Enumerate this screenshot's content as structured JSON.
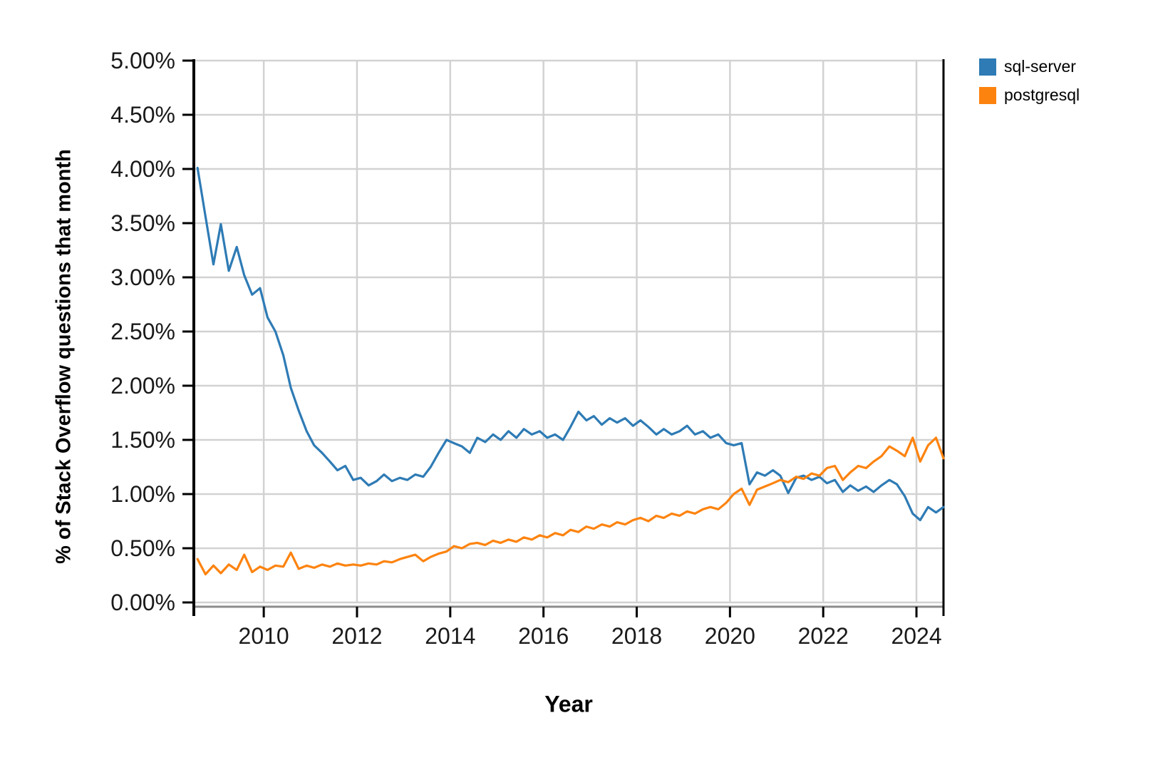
{
  "chart_data": {
    "type": "line",
    "title": "",
    "xlabel": "Year",
    "ylabel": "% of Stack Overflow questions that month",
    "xlim": [
      2008.5,
      2024.58
    ],
    "ylim": [
      0,
      5
    ],
    "grid": true,
    "legend_position": "outside-top-right",
    "x_ticks": [
      2010,
      2012,
      2014,
      2016,
      2018,
      2020,
      2022,
      2024
    ],
    "x_tick_labels": [
      "2010",
      "2012",
      "2014",
      "2016",
      "2018",
      "2020",
      "2022",
      "2024"
    ],
    "y_ticks": [
      0,
      0.5,
      1,
      1.5,
      2,
      2.5,
      3,
      3.5,
      4,
      4.5,
      5
    ],
    "y_tick_labels": [
      "0.00%",
      "0.50%",
      "1.00%",
      "1.50%",
      "2.00%",
      "2.50%",
      "3.00%",
      "3.50%",
      "4.00%",
      "4.50%",
      "5.00%"
    ],
    "colors": {
      "grid": "#d2d2d2",
      "spine": "#000000",
      "axis_bottom": "#8c8c8c",
      "text": "#1a1a1a"
    },
    "x": [
      2008.58,
      2008.75,
      2008.92,
      2009.08,
      2009.25,
      2009.42,
      2009.58,
      2009.75,
      2009.92,
      2010.08,
      2010.25,
      2010.42,
      2010.58,
      2010.75,
      2010.92,
      2011.08,
      2011.25,
      2011.42,
      2011.58,
      2011.75,
      2011.92,
      2012.08,
      2012.25,
      2012.42,
      2012.58,
      2012.75,
      2012.92,
      2013.08,
      2013.25,
      2013.42,
      2013.58,
      2013.75,
      2013.92,
      2014.08,
      2014.25,
      2014.42,
      2014.58,
      2014.75,
      2014.92,
      2015.08,
      2015.25,
      2015.42,
      2015.58,
      2015.75,
      2015.92,
      2016.08,
      2016.25,
      2016.42,
      2016.58,
      2016.75,
      2016.92,
      2017.08,
      2017.25,
      2017.42,
      2017.58,
      2017.75,
      2017.92,
      2018.08,
      2018.25,
      2018.42,
      2018.58,
      2018.75,
      2018.92,
      2019.08,
      2019.25,
      2019.42,
      2019.58,
      2019.75,
      2019.92,
      2020.08,
      2020.25,
      2020.42,
      2020.58,
      2020.75,
      2020.92,
      2021.08,
      2021.25,
      2021.42,
      2021.58,
      2021.75,
      2021.92,
      2022.08,
      2022.25,
      2022.42,
      2022.58,
      2022.75,
      2022.92,
      2023.08,
      2023.25,
      2023.42,
      2023.58,
      2023.75,
      2023.92,
      2024.08,
      2024.25,
      2024.42,
      2024.58
    ],
    "series": [
      {
        "name": "sql-server",
        "color": "#2e7bb5",
        "values": [
          4.01,
          3.56,
          3.12,
          3.49,
          3.06,
          3.28,
          3.02,
          2.84,
          2.9,
          2.63,
          2.5,
          2.28,
          1.98,
          1.77,
          1.58,
          1.45,
          1.38,
          1.3,
          1.22,
          1.26,
          1.13,
          1.15,
          1.08,
          1.12,
          1.18,
          1.12,
          1.15,
          1.13,
          1.18,
          1.16,
          1.25,
          1.38,
          1.5,
          1.47,
          1.44,
          1.38,
          1.52,
          1.48,
          1.55,
          1.5,
          1.58,
          1.52,
          1.6,
          1.55,
          1.58,
          1.52,
          1.55,
          1.5,
          1.62,
          1.76,
          1.68,
          1.72,
          1.64,
          1.7,
          1.66,
          1.7,
          1.63,
          1.68,
          1.62,
          1.55,
          1.6,
          1.55,
          1.58,
          1.63,
          1.55,
          1.58,
          1.52,
          1.55,
          1.47,
          1.45,
          1.47,
          1.09,
          1.2,
          1.17,
          1.22,
          1.17,
          1.01,
          1.15,
          1.17,
          1.13,
          1.16,
          1.1,
          1.13,
          1.02,
          1.08,
          1.03,
          1.07,
          1.02,
          1.08,
          1.13,
          1.09,
          0.98,
          0.82,
          0.76,
          0.88,
          0.83,
          0.88
        ]
      },
      {
        "name": "postgresql",
        "color": "#fd830f",
        "values": [
          0.4,
          0.26,
          0.34,
          0.27,
          0.35,
          0.3,
          0.44,
          0.28,
          0.33,
          0.3,
          0.34,
          0.33,
          0.46,
          0.31,
          0.34,
          0.32,
          0.35,
          0.33,
          0.36,
          0.34,
          0.35,
          0.34,
          0.36,
          0.35,
          0.38,
          0.37,
          0.4,
          0.42,
          0.44,
          0.38,
          0.42,
          0.45,
          0.47,
          0.52,
          0.5,
          0.54,
          0.55,
          0.53,
          0.57,
          0.55,
          0.58,
          0.56,
          0.6,
          0.58,
          0.62,
          0.6,
          0.64,
          0.62,
          0.67,
          0.65,
          0.7,
          0.68,
          0.72,
          0.7,
          0.74,
          0.72,
          0.76,
          0.78,
          0.75,
          0.8,
          0.78,
          0.82,
          0.8,
          0.84,
          0.82,
          0.86,
          0.88,
          0.86,
          0.92,
          1.0,
          1.05,
          0.9,
          1.04,
          1.07,
          1.1,
          1.13,
          1.11,
          1.16,
          1.14,
          1.19,
          1.17,
          1.24,
          1.26,
          1.13,
          1.2,
          1.26,
          1.24,
          1.3,
          1.35,
          1.44,
          1.4,
          1.35,
          1.52,
          1.3,
          1.45,
          1.52,
          1.33
        ]
      }
    ]
  }
}
